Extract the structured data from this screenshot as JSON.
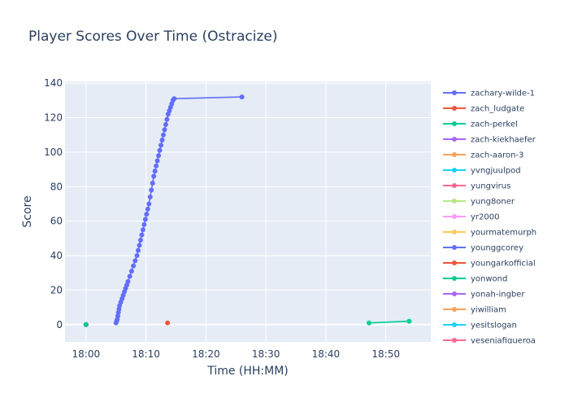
{
  "chart_data": {
    "type": "line",
    "title": "Player Scores Over Time (Ostracize)",
    "xlabel": "Time (HH:MM)",
    "ylabel": "Score",
    "x_unit": "minutes after 18:00",
    "xlim": [
      -3.5,
      57.5
    ],
    "ylim": [
      -10,
      141
    ],
    "x_ticks": [
      0,
      10,
      20,
      30,
      40,
      50
    ],
    "x_tick_labels": [
      "18:00",
      "18:10",
      "18:20",
      "18:30",
      "18:40",
      "18:50"
    ],
    "y_ticks": [
      0,
      20,
      40,
      60,
      80,
      100,
      120,
      140
    ],
    "grid": true,
    "legend_position": "right",
    "series": [
      {
        "name": "zachary-wilde-1",
        "color": "#636efa",
        "x": [
          5.0,
          5.1,
          5.2,
          5.3,
          5.4,
          5.5,
          5.6,
          5.8,
          6.0,
          6.2,
          6.4,
          6.6,
          6.8,
          7.0,
          7.3,
          7.6,
          7.9,
          8.2,
          8.5,
          8.7,
          8.9,
          9.1,
          9.3,
          9.5,
          9.7,
          9.9,
          10.1,
          10.3,
          10.5,
          10.7,
          10.9,
          11.1,
          11.3,
          11.5,
          11.7,
          11.9,
          12.1,
          12.3,
          12.5,
          12.7,
          12.9,
          13.1,
          13.3,
          13.5,
          13.7,
          13.9,
          14.1,
          14.3,
          14.5,
          14.7,
          26.0
        ],
        "y": [
          1,
          2,
          3,
          5,
          7,
          9,
          11,
          13,
          15,
          17,
          19,
          21,
          23,
          25,
          28,
          31,
          34,
          37,
          40,
          43,
          46,
          49,
          52,
          55,
          58,
          61,
          64,
          67,
          70,
          74,
          78,
          82,
          86,
          89,
          92,
          95,
          98,
          101,
          104,
          107,
          110,
          113,
          116,
          119,
          122,
          124,
          126,
          128,
          130,
          131,
          132
        ]
      },
      {
        "name": "zach_ludgate",
        "color": "#ef553b",
        "x": [
          13.6
        ],
        "y": [
          1
        ]
      },
      {
        "name": "zach-perkel",
        "color": "#00cc96",
        "x": [
          0.0
        ],
        "y": [
          0
        ]
      },
      {
        "name": "zach-kiekhaefer",
        "color": "#ab63fa",
        "x": [
          0.0
        ],
        "y": [
          0
        ]
      },
      {
        "name": "zach-aaron-3",
        "color": "#ffa15a",
        "x": [
          0.0
        ],
        "y": [
          0
        ]
      },
      {
        "name": "yvngjuulpod",
        "color": "#19d3f3",
        "x": [
          0.0
        ],
        "y": [
          0
        ]
      },
      {
        "name": "yungvirus",
        "color": "#ff6692",
        "x": [
          0.0
        ],
        "y": [
          0
        ]
      },
      {
        "name": "yung8oner",
        "color": "#b6e880",
        "x": [
          0.0
        ],
        "y": [
          0
        ]
      },
      {
        "name": "yr2000",
        "color": "#ff97ff",
        "x": [
          0.0
        ],
        "y": [
          0
        ]
      },
      {
        "name": "yourmatemurph",
        "color": "#fecb52",
        "x": [
          0.0
        ],
        "y": [
          0
        ]
      },
      {
        "name": "younggcorey",
        "color": "#636efa",
        "x": [
          0.0
        ],
        "y": [
          0
        ]
      },
      {
        "name": "youngarkofficial",
        "color": "#ef553b",
        "x": [
          0.0
        ],
        "y": [
          0
        ]
      },
      {
        "name": "yonwond",
        "color": "#00cc96",
        "x": [
          47.2,
          53.9
        ],
        "y": [
          1,
          2
        ]
      },
      {
        "name": "yonah-ingber",
        "color": "#ab63fa",
        "x": [
          0.0
        ],
        "y": [
          0
        ]
      },
      {
        "name": "yiwilliam",
        "color": "#ffa15a",
        "x": [
          0.0
        ],
        "y": [
          0
        ]
      },
      {
        "name": "yesitslogan",
        "color": "#19d3f3",
        "x": [
          0.0
        ],
        "y": [
          0
        ]
      },
      {
        "name": "yesenjafigueroa",
        "color": "#ff6692",
        "x": [
          0.0
        ],
        "y": [
          0
        ]
      }
    ]
  }
}
